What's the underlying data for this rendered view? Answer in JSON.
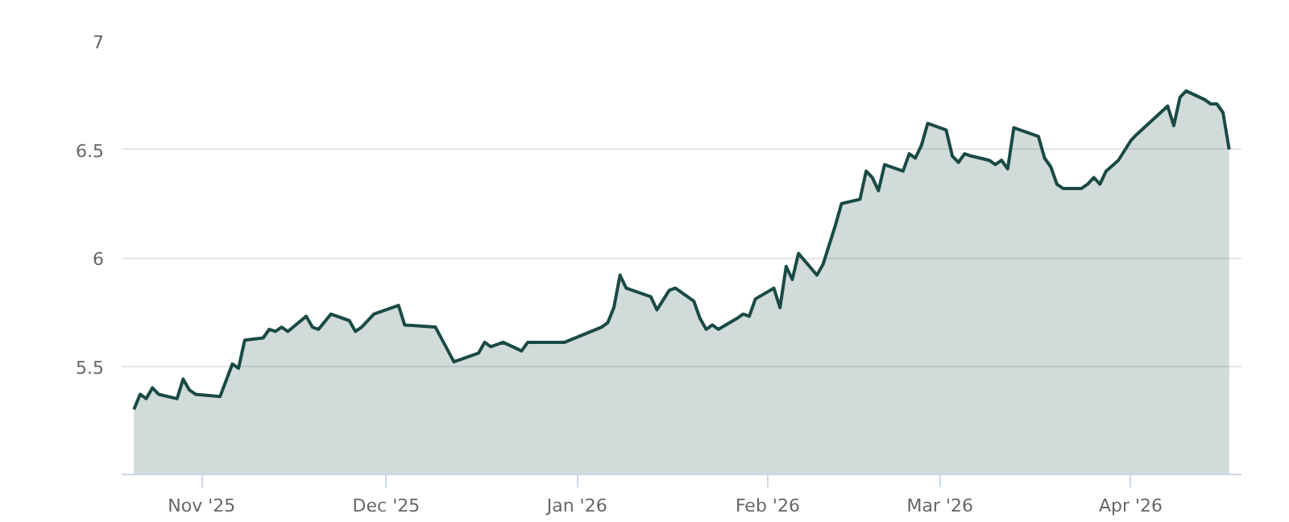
{
  "chart_data": {
    "type": "area",
    "x": [
      "2025-10-21",
      "2025-10-22",
      "2025-10-23",
      "2025-10-24",
      "2025-10-25",
      "2025-10-28",
      "2025-10-29",
      "2025-10-30",
      "2025-10-31",
      "2025-11-04",
      "2025-11-06",
      "2025-11-07",
      "2025-11-08",
      "2025-11-11",
      "2025-11-12",
      "2025-11-13",
      "2025-11-14",
      "2025-11-15",
      "2025-11-18",
      "2025-11-19",
      "2025-11-20",
      "2025-11-22",
      "2025-11-25",
      "2025-11-26",
      "2025-11-27",
      "2025-11-29",
      "2025-12-03",
      "2025-12-04",
      "2025-12-09",
      "2025-12-12",
      "2025-12-16",
      "2025-12-17",
      "2025-12-18",
      "2025-12-20",
      "2025-12-23",
      "2025-12-24",
      "2025-12-30",
      "2026-01-05",
      "2026-01-06",
      "2026-01-07",
      "2026-01-08",
      "2026-01-09",
      "2026-01-13",
      "2026-01-14",
      "2026-01-16",
      "2026-01-17",
      "2026-01-20",
      "2026-01-21",
      "2026-01-22",
      "2026-01-23",
      "2026-01-24",
      "2026-01-27",
      "2026-01-28",
      "2026-01-29",
      "2026-01-30",
      "2026-02-02",
      "2026-02-03",
      "2026-02-04",
      "2026-02-05",
      "2026-02-06",
      "2026-02-09",
      "2026-02-10",
      "2026-02-12",
      "2026-02-13",
      "2026-02-16",
      "2026-02-17",
      "2026-02-18",
      "2026-02-19",
      "2026-02-20",
      "2026-02-23",
      "2026-02-24",
      "2026-02-25",
      "2026-02-26",
      "2026-02-27",
      "2026-03-02",
      "2026-03-03",
      "2026-03-04",
      "2026-03-05",
      "2026-03-06",
      "2026-03-09",
      "2026-03-10",
      "2026-03-11",
      "2026-03-12",
      "2026-03-13",
      "2026-03-17",
      "2026-03-18",
      "2026-03-19",
      "2026-03-20",
      "2026-03-21",
      "2026-03-24",
      "2026-03-25",
      "2026-03-26",
      "2026-03-27",
      "2026-03-28",
      "2026-03-30",
      "2026-04-01",
      "2026-04-02",
      "2026-04-07",
      "2026-04-08",
      "2026-04-09",
      "2026-04-10",
      "2026-04-13",
      "2026-04-14",
      "2026-04-15",
      "2026-04-16",
      "2026-04-17"
    ],
    "series": [
      {
        "color": "#1a4a45",
        "values": [
          5.3,
          5.37,
          5.35,
          5.4,
          5.37,
          5.35,
          5.44,
          5.39,
          5.37,
          5.36,
          5.51,
          5.49,
          5.62,
          5.63,
          5.67,
          5.66,
          5.68,
          5.66,
          5.73,
          5.68,
          5.67,
          5.74,
          5.71,
          5.66,
          5.68,
          5.74,
          5.78,
          5.69,
          5.68,
          5.52,
          5.56,
          5.61,
          5.59,
          5.61,
          5.57,
          5.61,
          5.61,
          5.68,
          5.7,
          5.77,
          5.92,
          5.86,
          5.82,
          5.76,
          5.85,
          5.86,
          5.8,
          5.72,
          5.67,
          5.69,
          5.67,
          5.72,
          5.74,
          5.73,
          5.81,
          5.86,
          5.77,
          5.96,
          5.9,
          6.02,
          5.92,
          5.97,
          6.15,
          6.25,
          6.27,
          6.4,
          6.37,
          6.31,
          6.43,
          6.4,
          6.48,
          6.46,
          6.52,
          6.62,
          6.59,
          6.47,
          6.44,
          6.48,
          6.47,
          6.45,
          6.43,
          6.45,
          6.41,
          6.6,
          6.56,
          6.46,
          6.42,
          6.34,
          6.32,
          6.32,
          6.34,
          6.37,
          6.34,
          6.4,
          6.45,
          6.54,
          6.57,
          6.7,
          6.61,
          6.74,
          6.77,
          6.73,
          6.71,
          6.71,
          6.67,
          6.5
        ]
      }
    ],
    "ylim": [
      5,
      7
    ],
    "yticks": [
      {
        "value": 5,
        "label": null
      },
      5.5,
      6,
      6.5,
      7
    ],
    "xlim": [
      "2025-10-19",
      "2026-04-19"
    ],
    "xticks": [
      {
        "value": "2025-11-01",
        "label": "Nov '25"
      },
      {
        "value": "2025-12-01",
        "label": "Dec '25"
      },
      {
        "value": "2026-01-01",
        "label": "Jan '26"
      },
      {
        "value": "2026-02-01",
        "label": "Feb '26"
      },
      {
        "value": "2026-03-01",
        "label": "Mar '26"
      },
      {
        "value": "2026-04-01",
        "label": "Apr '26"
      }
    ],
    "grid": "y"
  }
}
